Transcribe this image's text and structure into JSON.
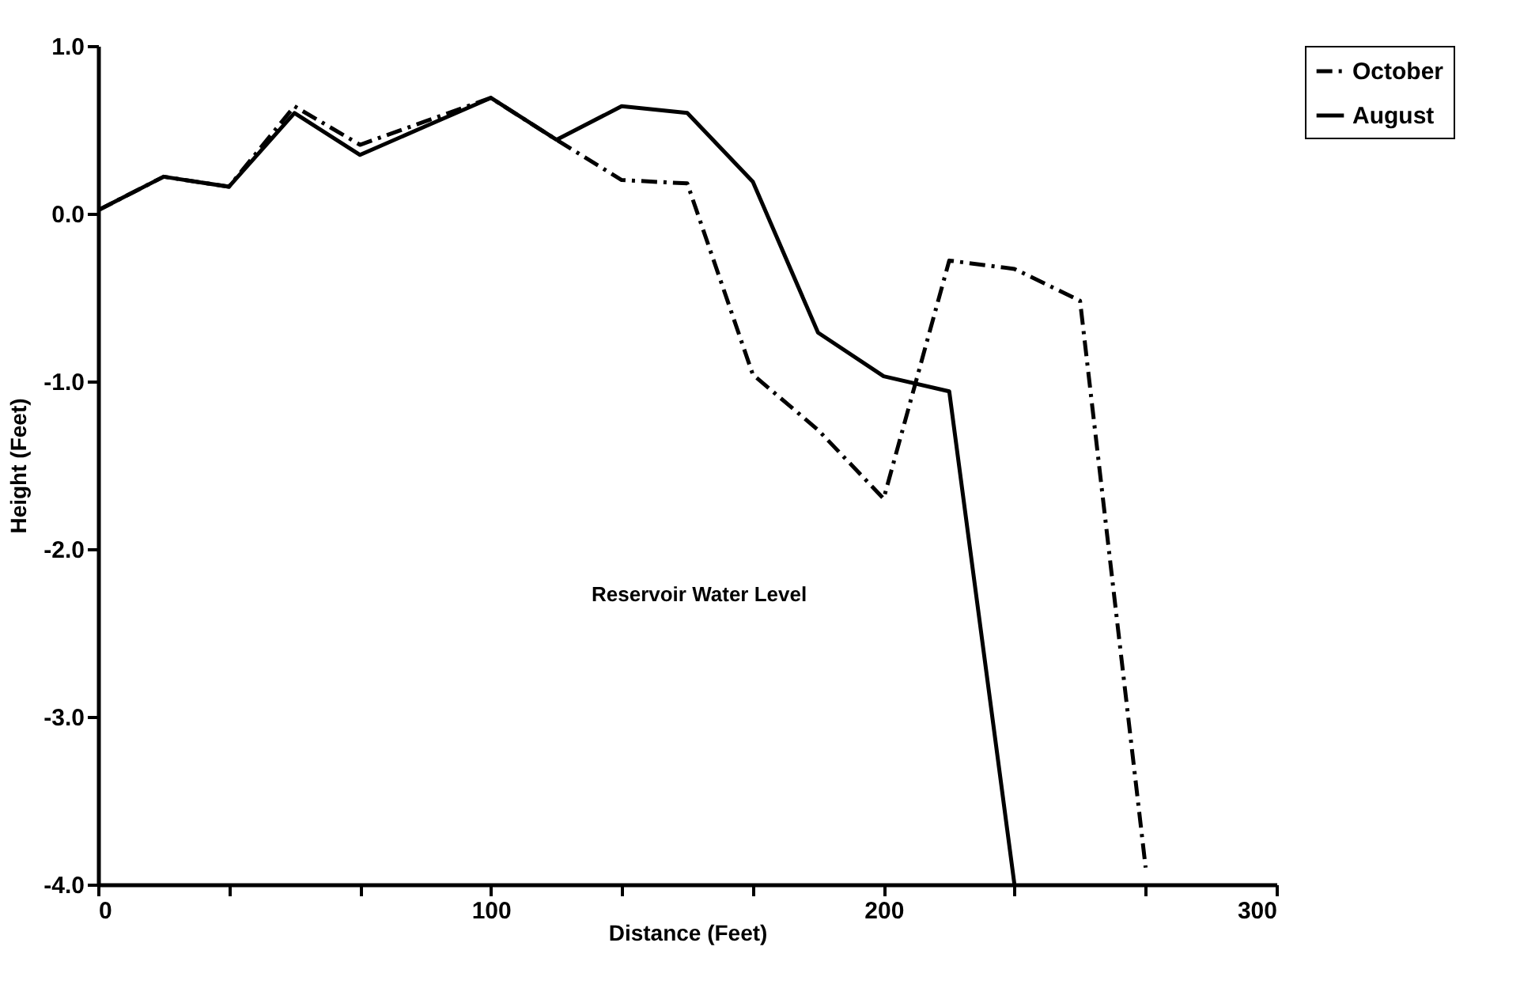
{
  "chart_data": {
    "type": "line",
    "xlabel": "Distance (Feet)",
    "ylabel": "Height (Feet)",
    "xlim": [
      0,
      300
    ],
    "ylim": [
      -4.0,
      1.0
    ],
    "xticks": [
      0,
      {
        "value": 33.3,
        "label": null
      },
      {
        "value": 66.7,
        "label": null
      },
      100,
      {
        "value": 133.3,
        "label": null
      },
      {
        "value": 166.7,
        "label": null
      },
      200,
      {
        "value": 233.3,
        "label": null
      },
      {
        "value": 266.7,
        "label": null
      },
      300
    ],
    "yticks": [
      {
        "value": 1.0,
        "label": "1.0"
      },
      {
        "value": 0.0,
        "label": "0.0"
      },
      {
        "value": -1.0,
        "label": "-1.0"
      },
      {
        "value": -2.0,
        "label": "-2.0"
      },
      {
        "value": -3.0,
        "label": "-3.0"
      },
      {
        "value": -4.0,
        "label": "-4.0"
      }
    ],
    "grid": false,
    "legend": "right",
    "marker": "none",
    "annotations": [
      "Reservoir Water Level"
    ],
    "series": [
      {
        "name": "October",
        "color": "#000000",
        "line_style": "dashed",
        "x": [
          0,
          16.7,
          33.3,
          50,
          66.7,
          83.3,
          100,
          116.7,
          133.3,
          150,
          166.7,
          183.3,
          200,
          216.7,
          233.3,
          250,
          266.7
        ],
        "values": [
          0.02,
          0.22,
          0.16,
          0.64,
          0.41,
          0.55,
          0.69,
          0.44,
          0.2,
          0.18,
          -0.96,
          -1.29,
          -1.7,
          -0.28,
          -0.33,
          -0.52,
          -3.9
        ]
      },
      {
        "name": "August",
        "color": "#000000",
        "line_style": "solid",
        "x": [
          0,
          16.7,
          33.3,
          50,
          66.7,
          83.3,
          100,
          116.7,
          133.3,
          150,
          166.7,
          183.3,
          200,
          216.7,
          233.3
        ],
        "values": [
          0.02,
          0.22,
          0.16,
          0.6,
          0.35,
          0.52,
          0.69,
          0.44,
          0.64,
          0.6,
          0.19,
          -0.71,
          -0.97,
          -1.06,
          -4.0
        ]
      }
    ]
  }
}
